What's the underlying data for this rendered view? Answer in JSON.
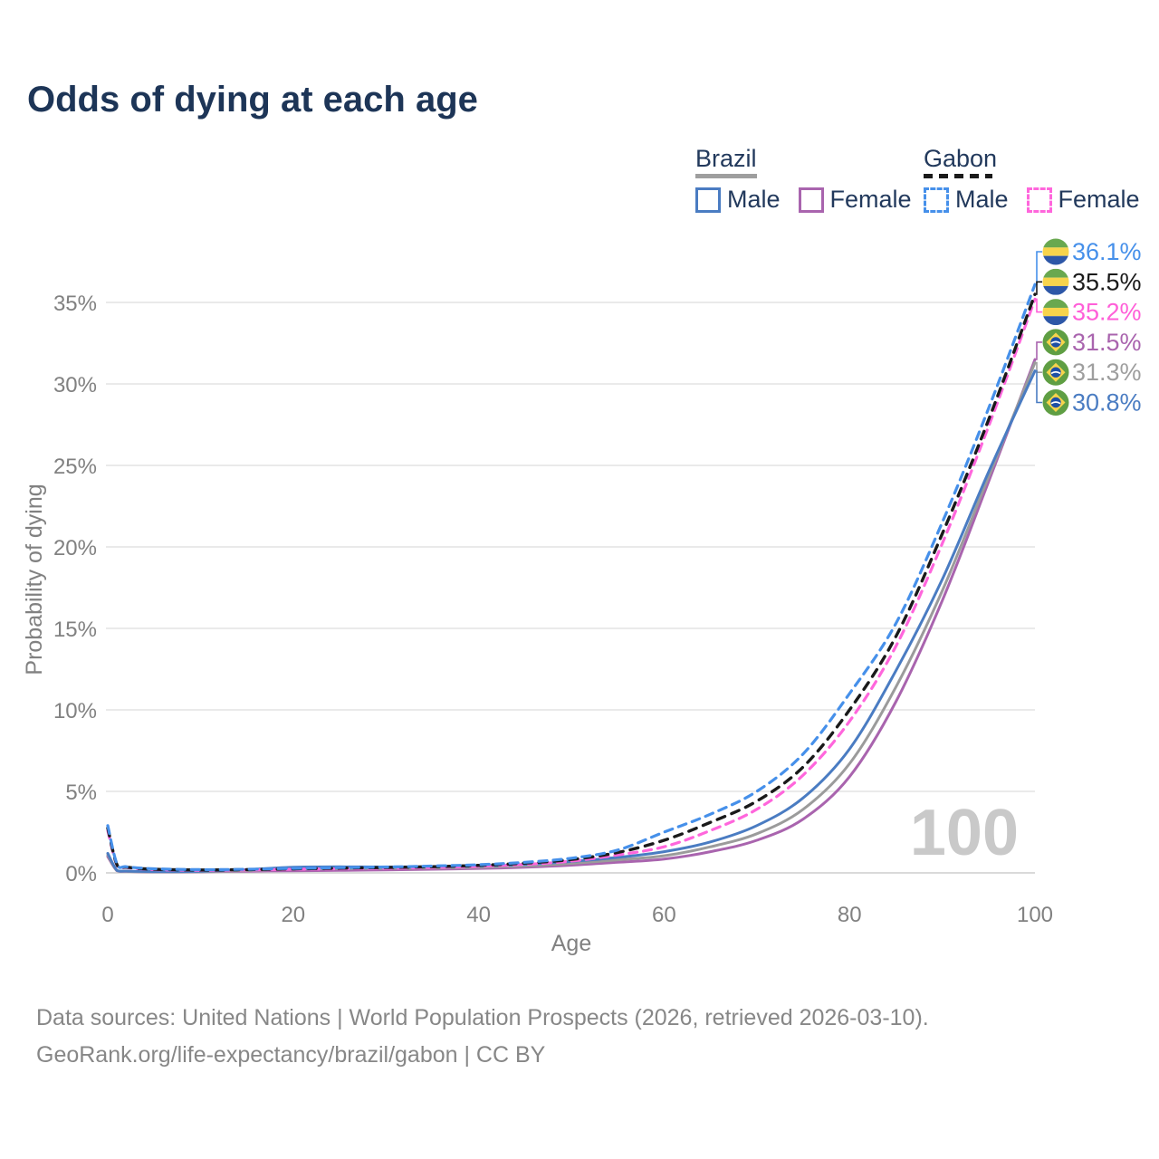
{
  "title": "Odds of dying at each age",
  "legend": {
    "groups": [
      {
        "country": "Brazil",
        "underline_color": "#9e9e9e",
        "underline_dashed": false,
        "items": [
          {
            "label": "Male",
            "color": "#4a7cc2",
            "dashed": false
          },
          {
            "label": "Female",
            "color": "#a964ae",
            "dashed": false
          }
        ]
      },
      {
        "country": "Gabon",
        "underline_color": "#1a1a1a",
        "underline_dashed": true,
        "items": [
          {
            "label": "Male",
            "color": "#4690ea",
            "dashed": true
          },
          {
            "label": "Female",
            "color": "#ff66dc",
            "dashed": true
          }
        ]
      }
    ]
  },
  "watermark": "100",
  "footer": {
    "line1": "Data sources: United Nations | World Population Prospects (2026, retrieved 2026-03-10).",
    "line2": "GeoRank.org/life-expectancy/brazil/gabon | CC BY"
  },
  "chart_data": {
    "type": "line",
    "title": "Odds of dying at each age",
    "xlabel": "Age",
    "ylabel": "Probability of dying",
    "xlim": [
      0,
      100
    ],
    "ylim": [
      0,
      38
    ],
    "grid": "horizontal",
    "legend_position": "top-right",
    "x_ticks": [
      {
        "v": 0,
        "label": "0"
      },
      {
        "v": 20,
        "label": "20"
      },
      {
        "v": 40,
        "label": "40"
      },
      {
        "v": 60,
        "label": "60"
      },
      {
        "v": 80,
        "label": "80"
      },
      {
        "v": 100,
        "label": "100"
      }
    ],
    "y_ticks": [
      {
        "v": 0,
        "label": "0%"
      },
      {
        "v": 5,
        "label": "5%"
      },
      {
        "v": 10,
        "label": "10%"
      },
      {
        "v": 15,
        "label": "15%"
      },
      {
        "v": 20,
        "label": "20%"
      },
      {
        "v": 25,
        "label": "25%"
      },
      {
        "v": 30,
        "label": "30%"
      },
      {
        "v": 35,
        "label": "35%"
      }
    ],
    "ages": [
      0,
      1,
      2,
      5,
      10,
      15,
      20,
      25,
      30,
      35,
      40,
      45,
      50,
      55,
      60,
      65,
      70,
      75,
      80,
      85,
      90,
      95,
      100
    ],
    "series": [
      {
        "name": "Brazil Female",
        "country": "Brazil",
        "sex": "Female",
        "color": "#a964ae",
        "dash": null,
        "width": 3,
        "values": [
          1.0,
          0.13,
          0.09,
          0.06,
          0.07,
          0.1,
          0.13,
          0.15,
          0.18,
          0.22,
          0.27,
          0.35,
          0.47,
          0.65,
          0.85,
          1.3,
          2.0,
          3.3,
          5.9,
          10.5,
          16.7,
          24.0,
          31.5
        ],
        "end_label": "31.5%"
      },
      {
        "name": "Brazil",
        "country": "Brazil",
        "sex": "Both",
        "color": "#9b9b9b",
        "dash": null,
        "width": 3,
        "values": [
          1.1,
          0.14,
          0.1,
          0.07,
          0.08,
          0.14,
          0.24,
          0.26,
          0.27,
          0.3,
          0.34,
          0.43,
          0.58,
          0.8,
          1.05,
          1.6,
          2.4,
          3.9,
          6.7,
          11.4,
          17.3,
          24.3,
          31.3
        ],
        "end_label": "31.3%"
      },
      {
        "name": "Brazil Male",
        "country": "Brazil",
        "sex": "Male",
        "color": "#4a7cc2",
        "dash": null,
        "width": 3,
        "values": [
          1.2,
          0.15,
          0.11,
          0.08,
          0.1,
          0.2,
          0.35,
          0.37,
          0.36,
          0.38,
          0.42,
          0.52,
          0.7,
          0.95,
          1.3,
          1.9,
          2.9,
          4.6,
          7.6,
          12.4,
          18.0,
          24.6,
          30.8
        ],
        "end_label": "30.8%"
      },
      {
        "name": "Gabon Female",
        "country": "Gabon",
        "sex": "Female",
        "color": "#ff66dc",
        "dash": "9 7",
        "width": 3.2,
        "values": [
          2.6,
          0.48,
          0.33,
          0.2,
          0.16,
          0.18,
          0.22,
          0.25,
          0.28,
          0.33,
          0.4,
          0.52,
          0.72,
          1.1,
          1.6,
          2.6,
          3.9,
          6.0,
          9.3,
          13.9,
          20.2,
          27.4,
          35.2
        ],
        "end_label": "35.2%"
      },
      {
        "name": "Gabon",
        "country": "Gabon",
        "sex": "Both",
        "color": "#1a1a1a",
        "dash": "9 8",
        "width": 3.4,
        "values": [
          2.75,
          0.5,
          0.35,
          0.22,
          0.18,
          0.2,
          0.25,
          0.29,
          0.33,
          0.38,
          0.46,
          0.6,
          0.82,
          1.25,
          2.0,
          3.1,
          4.4,
          6.5,
          10.0,
          14.5,
          20.8,
          27.8,
          35.5
        ],
        "end_label": "35.5%"
      },
      {
        "name": "Gabon Male",
        "country": "Gabon",
        "sex": "Male",
        "color": "#4690ea",
        "dash": "9 7",
        "width": 3.2,
        "values": [
          2.9,
          0.55,
          0.38,
          0.25,
          0.2,
          0.22,
          0.28,
          0.32,
          0.36,
          0.42,
          0.5,
          0.65,
          0.9,
          1.4,
          2.5,
          3.6,
          5.0,
          7.3,
          11.0,
          15.3,
          21.5,
          28.5,
          36.1
        ],
        "end_label": "36.1%"
      }
    ],
    "end_labels": [
      {
        "value": "36.1%",
        "v": 36.1,
        "color": "#4690ea",
        "flag": "gabon",
        "series": "Gabon Male"
      },
      {
        "value": "35.5%",
        "v": 35.5,
        "color": "#1a1a1a",
        "flag": "gabon",
        "series": "Gabon"
      },
      {
        "value": "35.2%",
        "v": 35.2,
        "color": "#ff5fd8",
        "flag": "gabon",
        "series": "Gabon Female"
      },
      {
        "value": "31.5%",
        "v": 31.5,
        "color": "#a964ae",
        "flag": "brazil",
        "series": "Brazil Female"
      },
      {
        "value": "31.3%",
        "v": 31.3,
        "color": "#9e9e9e",
        "flag": "brazil",
        "series": "Brazil"
      },
      {
        "value": "30.8%",
        "v": 30.8,
        "color": "#4a7cc2",
        "flag": "brazil",
        "series": "Brazil Male"
      }
    ],
    "flag_colors": {
      "gabon": {
        "green": "#69a84f",
        "yellow": "#f7d44c",
        "blue": "#2d57a7"
      },
      "brazil": {
        "green": "#5f9e43",
        "yellow": "#f7d44c",
        "blue": "#1e4fa5",
        "band": "#ffffff"
      }
    }
  }
}
